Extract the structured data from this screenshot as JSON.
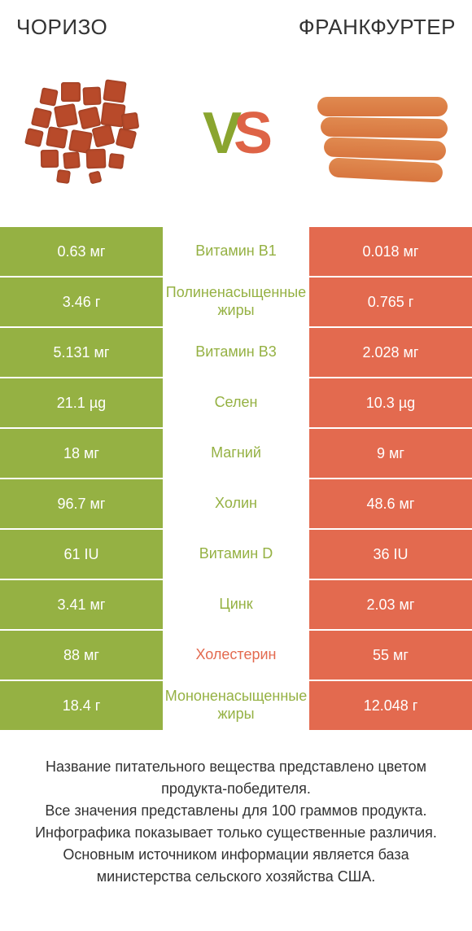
{
  "colors": {
    "green": "#95b143",
    "orange": "#e36a4f",
    "text_dark": "#333333",
    "white": "#ffffff"
  },
  "header": {
    "left": "ЧОРИЗО",
    "right": "ФРАНКФУРТЕР"
  },
  "vs": {
    "v": "V",
    "s": "S"
  },
  "rows": [
    {
      "left": "0.63 мг",
      "mid": "Витамин B1",
      "right": "0.018 мг",
      "left_bg": "green",
      "right_bg": "orange",
      "mid_color": "green"
    },
    {
      "left": "3.46 г",
      "mid": "Полиненасыщенные жиры",
      "right": "0.765 г",
      "left_bg": "green",
      "right_bg": "orange",
      "mid_color": "green"
    },
    {
      "left": "5.131 мг",
      "mid": "Витамин B3",
      "right": "2.028 мг",
      "left_bg": "green",
      "right_bg": "orange",
      "mid_color": "green"
    },
    {
      "left": "21.1 µg",
      "mid": "Селен",
      "right": "10.3 µg",
      "left_bg": "green",
      "right_bg": "orange",
      "mid_color": "green"
    },
    {
      "left": "18 мг",
      "mid": "Магний",
      "right": "9 мг",
      "left_bg": "green",
      "right_bg": "orange",
      "mid_color": "green"
    },
    {
      "left": "96.7 мг",
      "mid": "Холин",
      "right": "48.6 мг",
      "left_bg": "green",
      "right_bg": "orange",
      "mid_color": "green"
    },
    {
      "left": "61 IU",
      "mid": "Витамин D",
      "right": "36 IU",
      "left_bg": "green",
      "right_bg": "orange",
      "mid_color": "green"
    },
    {
      "left": "3.41 мг",
      "mid": "Цинк",
      "right": "2.03 мг",
      "left_bg": "green",
      "right_bg": "orange",
      "mid_color": "green"
    },
    {
      "left": "88 мг",
      "mid": "Холестерин",
      "right": "55 мг",
      "left_bg": "green",
      "right_bg": "orange",
      "mid_color": "orange"
    },
    {
      "left": "18.4 г",
      "mid": "Мононенасыщенные жиры",
      "right": "12.048 г",
      "left_bg": "green",
      "right_bg": "orange",
      "mid_color": "green"
    }
  ],
  "footer": {
    "line1": "Название питательного вещества представлено цветом продукта-победителя.",
    "line2": "Все значения представлены для 100 граммов продукта.",
    "line3": "Инфографика показывает только существенные различия.",
    "line4": "Основным источником информации является база министерства сельского хозяйства США."
  },
  "chorizo_cubes": [
    {
      "l": 30,
      "t": 20,
      "s": 20
    },
    {
      "l": 55,
      "t": 12,
      "s": 24
    },
    {
      "l": 82,
      "t": 18,
      "s": 22
    },
    {
      "l": 108,
      "t": 10,
      "s": 26
    },
    {
      "l": 20,
      "t": 45,
      "s": 22
    },
    {
      "l": 48,
      "t": 40,
      "s": 26
    },
    {
      "l": 78,
      "t": 44,
      "s": 24
    },
    {
      "l": 105,
      "t": 38,
      "s": 28
    },
    {
      "l": 12,
      "t": 70,
      "s": 20
    },
    {
      "l": 38,
      "t": 68,
      "s": 24
    },
    {
      "l": 66,
      "t": 72,
      "s": 26
    },
    {
      "l": 95,
      "t": 66,
      "s": 24
    },
    {
      "l": 124,
      "t": 70,
      "s": 22
    },
    {
      "l": 30,
      "t": 95,
      "s": 22
    },
    {
      "l": 58,
      "t": 98,
      "s": 20
    },
    {
      "l": 86,
      "t": 94,
      "s": 24
    },
    {
      "l": 114,
      "t": 100,
      "s": 18
    },
    {
      "l": 50,
      "t": 120,
      "s": 16
    },
    {
      "l": 90,
      "t": 122,
      "s": 14
    },
    {
      "l": 130,
      "t": 50,
      "s": 20
    }
  ],
  "frankfurters": [
    {
      "l": 10,
      "t": 30,
      "w": 160,
      "r": 0
    },
    {
      "l": 14,
      "t": 56,
      "w": 156,
      "r": 1
    },
    {
      "l": 18,
      "t": 82,
      "w": 150,
      "r": 2
    },
    {
      "l": 24,
      "t": 108,
      "w": 140,
      "r": 3
    }
  ]
}
